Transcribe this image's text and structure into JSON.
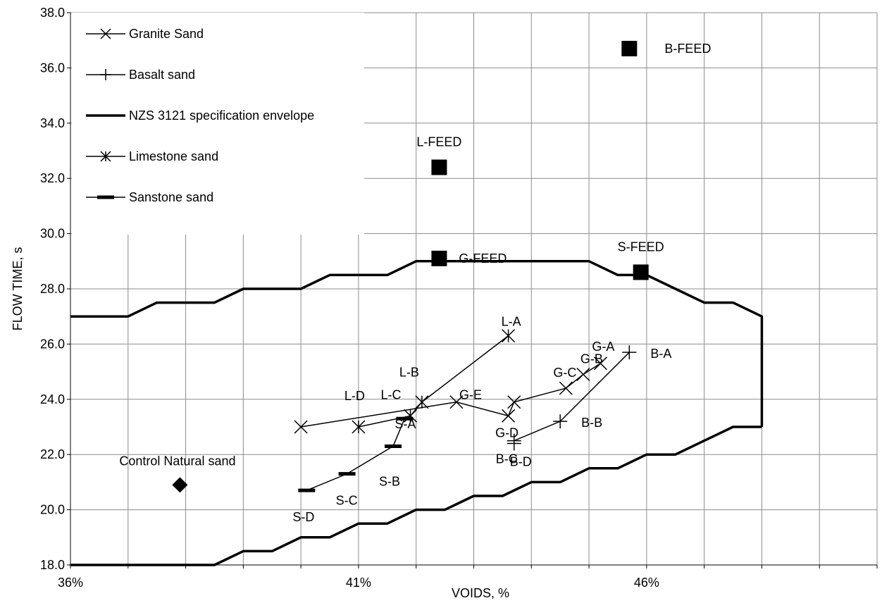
{
  "chart_data": {
    "type": "scatter",
    "title": "",
    "xlabel": "VOIDS, %",
    "ylabel": "FLOW TIME, s",
    "xlim": [
      36,
      50
    ],
    "ylim": [
      18,
      38
    ],
    "grid": true,
    "legend_position": "top-left",
    "x_ticks": [
      {
        "value": 36,
        "label": "36%"
      },
      {
        "value": 41,
        "label": "41%"
      },
      {
        "value": 46,
        "label": "46%"
      }
    ],
    "y_ticks": [
      {
        "value": 18,
        "label": "18.0"
      },
      {
        "value": 20,
        "label": "20.0"
      },
      {
        "value": 22,
        "label": "22.0"
      },
      {
        "value": 24,
        "label": "24.0"
      },
      {
        "value": 26,
        "label": "26.0"
      },
      {
        "value": 28,
        "label": "28.0"
      },
      {
        "value": 30,
        "label": "30.0"
      },
      {
        "value": 32,
        "label": "32.0"
      },
      {
        "value": 34,
        "label": "34.0"
      },
      {
        "value": 36,
        "label": "36.0"
      },
      {
        "value": 38,
        "label": "38.0"
      }
    ],
    "series": [
      {
        "name": "Granite Sand",
        "marker": "x",
        "points": [
          {
            "x": 40.0,
            "y": 23.0,
            "label": ""
          },
          {
            "x": 42.7,
            "y": 23.9,
            "label": "G-E"
          },
          {
            "x": 43.6,
            "y": 23.4,
            "label": "G-D"
          },
          {
            "x": 43.7,
            "y": 23.9,
            "label": ""
          },
          {
            "x": 44.6,
            "y": 24.4,
            "label": "G-C"
          },
          {
            "x": 44.9,
            "y": 24.9,
            "label": "G-B"
          },
          {
            "x": 45.2,
            "y": 25.3,
            "label": "G-A"
          }
        ]
      },
      {
        "name": "Basalt sand",
        "marker": "plus",
        "points": [
          {
            "x": 43.7,
            "y": 22.4,
            "label": "B-D"
          },
          {
            "x": 43.7,
            "y": 22.5,
            "label": "B-C"
          },
          {
            "x": 44.5,
            "y": 23.2,
            "label": "B-B"
          },
          {
            "x": 45.7,
            "y": 25.7,
            "label": "B-A"
          }
        ]
      },
      {
        "name": "NZS 3121 specification envelope",
        "marker": "none",
        "upper": [
          [
            36,
            27
          ],
          [
            37,
            27
          ],
          [
            37.5,
            27.5
          ],
          [
            38.5,
            27.5
          ],
          [
            39,
            28
          ],
          [
            40,
            28
          ],
          [
            40.5,
            28.5
          ],
          [
            41.5,
            28.5
          ],
          [
            42,
            29
          ],
          [
            45,
            29
          ],
          [
            45.5,
            28.5
          ],
          [
            46,
            28.5
          ],
          [
            46.5,
            28
          ],
          [
            47,
            27.5
          ],
          [
            47.5,
            27.5
          ],
          [
            48,
            27
          ],
          [
            48,
            23
          ]
        ],
        "lower": [
          [
            36,
            18
          ],
          [
            38.5,
            18
          ],
          [
            39,
            18.5
          ],
          [
            39.5,
            18.5
          ],
          [
            40,
            19
          ],
          [
            40.5,
            19
          ],
          [
            41,
            19.5
          ],
          [
            41.5,
            19.5
          ],
          [
            42,
            20
          ],
          [
            42.5,
            20
          ],
          [
            43,
            20.5
          ],
          [
            43.5,
            20.5
          ],
          [
            44,
            21
          ],
          [
            44.5,
            21
          ],
          [
            45,
            21.5
          ],
          [
            45.5,
            21.5
          ],
          [
            46,
            22
          ],
          [
            46.5,
            22
          ],
          [
            47,
            22.5
          ],
          [
            47.5,
            23
          ],
          [
            48,
            23
          ]
        ]
      },
      {
        "name": "Limestone sand",
        "marker": "star",
        "points": [
          {
            "x": 41.0,
            "y": 23.0,
            "label": "L-D"
          },
          {
            "x": 41.9,
            "y": 23.4,
            "label": "L-C"
          },
          {
            "x": 42.1,
            "y": 23.9,
            "label": "L-B"
          },
          {
            "x": 43.6,
            "y": 26.3,
            "label": "L-A"
          }
        ]
      },
      {
        "name": "Sanstone sand",
        "marker": "dash",
        "points": [
          {
            "x": 40.1,
            "y": 20.7,
            "label": "S-D"
          },
          {
            "x": 40.8,
            "y": 21.3,
            "label": "S-C"
          },
          {
            "x": 41.6,
            "y": 22.3,
            "label": "S-B"
          },
          {
            "x": 41.8,
            "y": 23.3,
            "label": "S-A"
          }
        ]
      }
    ],
    "feed_points": [
      {
        "label": "B-FEED",
        "x": 45.7,
        "y": 36.7
      },
      {
        "label": "L-FEED",
        "x": 42.4,
        "y": 32.4
      },
      {
        "label": "G-FEED",
        "x": 42.4,
        "y": 29.1
      },
      {
        "label": "S-FEED",
        "x": 45.9,
        "y": 28.6
      }
    ],
    "control_point": {
      "label": "Control Natural sand",
      "x": 37.9,
      "y": 20.9
    }
  }
}
